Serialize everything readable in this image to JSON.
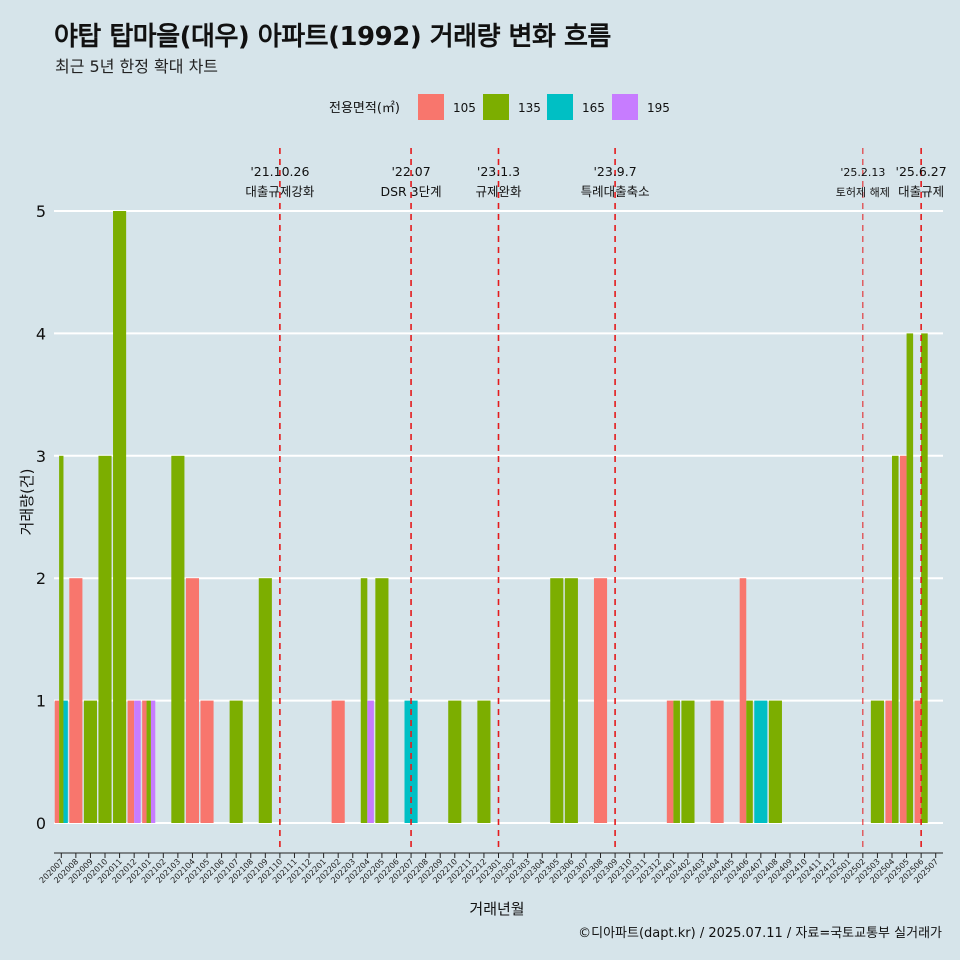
{
  "title": "야탑 탑마을(대우) 아파트(1992) 거래량 변화 흐름",
  "subtitle": "최근 5년 한정 확대 차트",
  "caption": "©디아파트(dapt.kr) / 2025.07.11 / 자료=국토교통부 실거래가",
  "colors": {
    "105": "#f8766d",
    "135": "#7cae00",
    "165": "#00bfc4",
    "195": "#c77cff",
    "event_line": "#e41a1c",
    "background": "#d6e4ea",
    "grid": "#ffffff"
  },
  "chart_data": {
    "type": "bar",
    "xlabel": "거래년월",
    "ylabel": "거래량(건)",
    "ylim": [
      0,
      5
    ],
    "yticks": [
      0,
      1,
      2,
      3,
      4,
      5
    ],
    "grid": true,
    "legend_title": "전용면적(㎡)",
    "legend_position": "top",
    "legend_labels": [
      "105",
      "135",
      "165",
      "195"
    ],
    "categories": [
      "202007",
      "202008",
      "202009",
      "202010",
      "202011",
      "202012",
      "202101",
      "202102",
      "202103",
      "202104",
      "202105",
      "202106",
      "202107",
      "202108",
      "202109",
      "202110",
      "202111",
      "202112",
      "202201",
      "202202",
      "202203",
      "202204",
      "202205",
      "202206",
      "202207",
      "202208",
      "202209",
      "202210",
      "202211",
      "202212",
      "202301",
      "202302",
      "202303",
      "202304",
      "202305",
      "202306",
      "202307",
      "202308",
      "202309",
      "202310",
      "202311",
      "202312",
      "202401",
      "202402",
      "202403",
      "202404",
      "202405",
      "202406",
      "202407",
      "202408",
      "202409",
      "202410",
      "202411",
      "202412",
      "202501",
      "202502",
      "202503",
      "202504",
      "202505",
      "202506",
      "202507"
    ],
    "bars": [
      {
        "month": "202007",
        "values": {
          "105": 1,
          "135": 3,
          "165": 1
        }
      },
      {
        "month": "202008",
        "values": {
          "105": 2
        }
      },
      {
        "month": "202009",
        "values": {
          "135": 1
        }
      },
      {
        "month": "202010",
        "values": {
          "135": 3
        }
      },
      {
        "month": "202011",
        "values": {
          "135": 5
        }
      },
      {
        "month": "202012",
        "values": {
          "105": 1,
          "195": 1
        }
      },
      {
        "month": "202101",
        "values": {
          "105": 1,
          "195": 1,
          "135": 1
        }
      },
      {
        "month": "202103",
        "values": {
          "135": 3
        }
      },
      {
        "month": "202104",
        "values": {
          "105": 2
        }
      },
      {
        "month": "202105",
        "values": {
          "105": 1
        }
      },
      {
        "month": "202107",
        "values": {
          "135": 1
        }
      },
      {
        "month": "202109",
        "values": {
          "135": 2
        }
      },
      {
        "month": "202202",
        "values": {
          "105": 1
        }
      },
      {
        "month": "202204",
        "values": {
          "135": 2,
          "195": 1
        }
      },
      {
        "month": "202205",
        "values": {
          "135": 2
        }
      },
      {
        "month": "202207",
        "values": {
          "165": 1
        }
      },
      {
        "month": "202210",
        "values": {
          "135": 1
        }
      },
      {
        "month": "202212",
        "values": {
          "135": 1
        }
      },
      {
        "month": "202305",
        "values": {
          "135": 2
        }
      },
      {
        "month": "202306",
        "values": {
          "135": 2
        }
      },
      {
        "month": "202308",
        "values": {
          "105": 2
        }
      },
      {
        "month": "202401",
        "values": {
          "105": 1,
          "135": 1
        }
      },
      {
        "month": "202402",
        "values": {
          "135": 1
        }
      },
      {
        "month": "202404",
        "values": {
          "105": 1
        }
      },
      {
        "month": "202406",
        "values": {
          "105": 2,
          "135": 1
        }
      },
      {
        "month": "202407",
        "values": {
          "165": 1
        }
      },
      {
        "month": "202408",
        "values": {
          "135": 1
        }
      },
      {
        "month": "202503",
        "values": {
          "135": 1
        }
      },
      {
        "month": "202504",
        "values": {
          "105": 1,
          "135": 3
        }
      },
      {
        "month": "202505",
        "values": {
          "105": 3,
          "135": 4
        }
      },
      {
        "month": "202506",
        "values": {
          "105": 1,
          "135": 4
        }
      }
    ],
    "events": [
      {
        "x": "202110",
        "date": "'21.10.26",
        "label": "대출규제강화",
        "style": "major"
      },
      {
        "x": "202207",
        "date": "'22.07",
        "label": "DSR 3단계",
        "style": "major"
      },
      {
        "x": "202301",
        "date": "'23.1.3",
        "label": "규제완화",
        "style": "major"
      },
      {
        "x": "202309",
        "date": "'23.9.7",
        "label": "특례대출축소",
        "style": "major"
      },
      {
        "x": "202502",
        "date": "'25.2.13",
        "label": "토허제 해제",
        "style": "minor"
      },
      {
        "x": "202506",
        "date": "'25.6.27",
        "label": "대출규제",
        "style": "major"
      }
    ]
  }
}
